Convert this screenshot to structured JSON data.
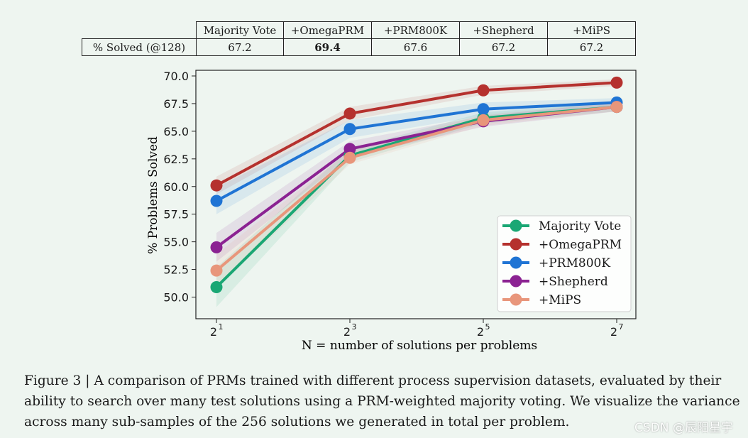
{
  "table": {
    "headers": [
      "Majority Vote",
      "+OmegaPRM",
      "+PRM800K",
      "+Shepherd",
      "+MiPS"
    ],
    "row_label": "% Solved (@128)",
    "values": [
      "67.2",
      "69.4",
      "67.6",
      "67.2",
      "67.2"
    ],
    "bold_index": 1
  },
  "chart_data": {
    "type": "line",
    "x": [
      2,
      8,
      32,
      128
    ],
    "x_tick_labels": [
      {
        "base": "2",
        "exp": "1"
      },
      {
        "base": "2",
        "exp": "3"
      },
      {
        "base": "2",
        "exp": "5"
      },
      {
        "base": "2",
        "exp": "7"
      }
    ],
    "xscale": "log2",
    "xlabel": "N = number of solutions per problems",
    "ylabel": "% Problems Solved",
    "ylim": [
      48.0,
      70.5
    ],
    "y_ticks": [
      "70.0",
      "67.5",
      "65.0",
      "62.5",
      "60.0",
      "57.5",
      "55.0",
      "52.5",
      "50.0"
    ],
    "legend_position": "lower-right",
    "series": [
      {
        "name": "Majority Vote",
        "color": "#1aa774",
        "values": [
          50.9,
          62.8,
          66.2,
          67.2
        ],
        "band": [
          1.8,
          0.6,
          0.5,
          0.4
        ]
      },
      {
        "name": "+OmegaPRM",
        "color": "#b5312e",
        "values": [
          60.1,
          66.6,
          68.7,
          69.4
        ],
        "band": [
          0.8,
          0.6,
          0.4,
          0.3
        ]
      },
      {
        "name": "+PRM800K",
        "color": "#1f74d4",
        "values": [
          58.7,
          65.2,
          67.0,
          67.6
        ],
        "band": [
          1.2,
          0.8,
          0.6,
          0.4
        ]
      },
      {
        "name": "+Shepherd",
        "color": "#8b2292",
        "values": [
          54.5,
          63.4,
          65.9,
          67.2
        ],
        "band": [
          1.3,
          0.7,
          0.5,
          0.4
        ]
      },
      {
        "name": "+MiPS",
        "color": "#e8967b",
        "values": [
          52.4,
          62.6,
          66.0,
          67.2
        ],
        "band": [
          1.5,
          0.6,
          0.5,
          0.4
        ]
      }
    ]
  },
  "caption": "Figure 3 | A comparison of PRMs trained with different process supervision datasets, evaluated by their ability to search over many test solutions using a PRM-weighted majority voting. We visualize the variance across many sub-samples of the 256 solutions we generated in total per problem.",
  "watermark": "CSDN @辰阳星宇"
}
